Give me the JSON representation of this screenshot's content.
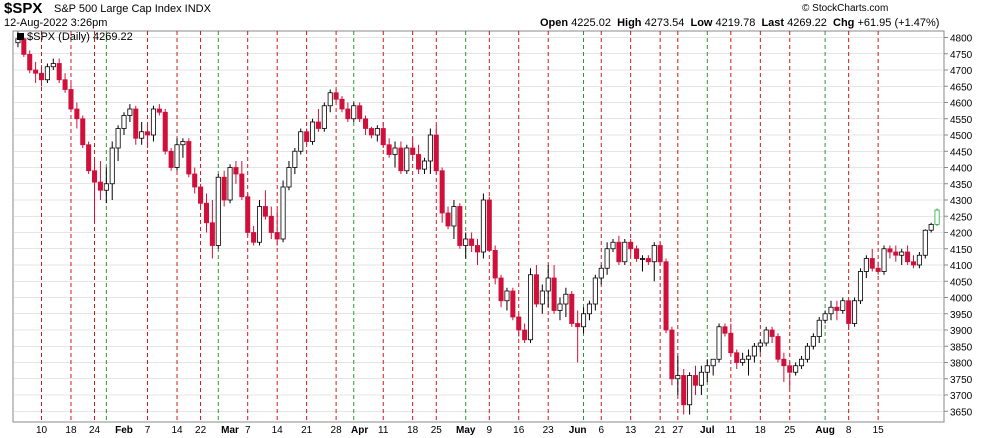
{
  "header": {
    "symbol": "$SPX",
    "description": "S&P 500 Large Cap Index  INDX",
    "copyright": "© StockCharts.com",
    "datetime": "12-Aug-2022 3:26pm",
    "open_label": "Open",
    "open": "4225.02",
    "high_label": "High",
    "high": "4273.54",
    "low_label": "Low",
    "low": "4219.78",
    "last_label": "Last",
    "last": "4269.22",
    "chg_label": "Chg",
    "chg": "+61.95 (+1.47%)"
  },
  "legend": "$SPX (Daily) 4269.22",
  "colors": {
    "up": "#000000",
    "down": "#d0103a",
    "last_up": "#22a83a",
    "grid": "#cccccc",
    "week_line": "#cc0000",
    "month_line": "#1a8a1a"
  },
  "chart_data": {
    "type": "candlestick",
    "title": "$SPX (Daily) 4269.22",
    "ylim": [
      3620,
      4820
    ],
    "yticks": [
      3650,
      3700,
      3750,
      3800,
      3850,
      3900,
      3950,
      4000,
      4050,
      4100,
      4150,
      4200,
      4250,
      4300,
      4350,
      4400,
      4450,
      4500,
      4550,
      4600,
      4650,
      4700,
      4750,
      4800
    ],
    "x_tick_labels": [
      {
        "label": "10",
        "i": 4
      },
      {
        "label": "18",
        "i": 9
      },
      {
        "label": "24",
        "i": 13
      },
      {
        "label": "Feb",
        "i": 18,
        "bold": true
      },
      {
        "label": "7",
        "i": 22
      },
      {
        "label": "14",
        "i": 27
      },
      {
        "label": "22",
        "i": 31
      },
      {
        "label": "Mar",
        "i": 36,
        "bold": true
      },
      {
        "label": "7",
        "i": 39
      },
      {
        "label": "14",
        "i": 44
      },
      {
        "label": "21",
        "i": 49
      },
      {
        "label": "28",
        "i": 54
      },
      {
        "label": "Apr",
        "i": 58,
        "bold": true
      },
      {
        "label": "11",
        "i": 62
      },
      {
        "label": "18",
        "i": 67
      },
      {
        "label": "25",
        "i": 71
      },
      {
        "label": "May",
        "i": 76,
        "bold": true
      },
      {
        "label": "9",
        "i": 80
      },
      {
        "label": "16",
        "i": 85
      },
      {
        "label": "23",
        "i": 90
      },
      {
        "label": "Jun",
        "i": 95,
        "bold": true
      },
      {
        "label": "6",
        "i": 99
      },
      {
        "label": "13",
        "i": 104
      },
      {
        "label": "21",
        "i": 109
      },
      {
        "label": "27",
        "i": 112
      },
      {
        "label": "Jul",
        "i": 117,
        "bold": true
      },
      {
        "label": "11",
        "i": 121
      },
      {
        "label": "18",
        "i": 126
      },
      {
        "label": "25",
        "i": 131
      },
      {
        "label": "Aug",
        "i": 137,
        "bold": true
      },
      {
        "label": "8",
        "i": 141
      },
      {
        "label": "15",
        "i": 146
      }
    ],
    "week_line_idx": [
      4,
      9,
      13,
      22,
      27,
      31,
      39,
      44,
      49,
      54,
      62,
      67,
      71,
      80,
      85,
      90,
      99,
      104,
      109,
      112,
      121,
      126,
      131,
      141,
      146
    ],
    "month_line_idx": [
      15,
      34,
      57,
      76,
      96,
      117,
      137
    ],
    "candles": [
      [
        4784,
        4818,
        4770,
        4796
      ],
      [
        4796,
        4800,
        4740,
        4748
      ],
      [
        4748,
        4760,
        4690,
        4700
      ],
      [
        4700,
        4725,
        4660,
        4690
      ],
      [
        4690,
        4715,
        4650,
        4670
      ],
      [
        4670,
        4720,
        4660,
        4710
      ],
      [
        4710,
        4735,
        4700,
        4720
      ],
      [
        4720,
        4735,
        4660,
        4670
      ],
      [
        4670,
        4690,
        4630,
        4640
      ],
      [
        4640,
        4660,
        4570,
        4580
      ],
      [
        4580,
        4600,
        4520,
        4550
      ],
      [
        4550,
        4560,
        4460,
        4470
      ],
      [
        4470,
        4480,
        4380,
        4390
      ],
      [
        4390,
        4420,
        4230,
        4355
      ],
      [
        4355,
        4420,
        4300,
        4330
      ],
      [
        4330,
        4400,
        4290,
        4350
      ],
      [
        4350,
        4480,
        4300,
        4460
      ],
      [
        4460,
        4530,
        4420,
        4520
      ],
      [
        4520,
        4570,
        4500,
        4560
      ],
      [
        4560,
        4595,
        4540,
        4580
      ],
      [
        4580,
        4590,
        4470,
        4490
      ],
      [
        4490,
        4540,
        4470,
        4510
      ],
      [
        4510,
        4530,
        4460,
        4500
      ],
      [
        4500,
        4590,
        4480,
        4580
      ],
      [
        4580,
        4595,
        4560,
        4570
      ],
      [
        4570,
        4580,
        4440,
        4450
      ],
      [
        4450,
        4460,
        4390,
        4400
      ],
      [
        4400,
        4490,
        4390,
        4470
      ],
      [
        4470,
        4490,
        4430,
        4480
      ],
      [
        4480,
        4490,
        4370,
        4380
      ],
      [
        4380,
        4400,
        4320,
        4340
      ],
      [
        4340,
        4350,
        4280,
        4290
      ],
      [
        4290,
        4320,
        4200,
        4230
      ],
      [
        4230,
        4300,
        4120,
        4160
      ],
      [
        4160,
        4380,
        4150,
        4370
      ],
      [
        4370,
        4390,
        4280,
        4300
      ],
      [
        4300,
        4410,
        4290,
        4400
      ],
      [
        4400,
        4420,
        4350,
        4380
      ],
      [
        4380,
        4420,
        4300,
        4310
      ],
      [
        4310,
        4320,
        4190,
        4200
      ],
      [
        4200,
        4220,
        4160,
        4170
      ],
      [
        4170,
        4300,
        4160,
        4280
      ],
      [
        4280,
        4330,
        4240,
        4250
      ],
      [
        4250,
        4280,
        4180,
        4200
      ],
      [
        4200,
        4270,
        4160,
        4180
      ],
      [
        4180,
        4360,
        4170,
        4340
      ],
      [
        4340,
        4420,
        4330,
        4400
      ],
      [
        4400,
        4460,
        4380,
        4450
      ],
      [
        4450,
        4520,
        4440,
        4510
      ],
      [
        4510,
        4520,
        4470,
        4480
      ],
      [
        4480,
        4550,
        4470,
        4540
      ],
      [
        4540,
        4580,
        4510,
        4520
      ],
      [
        4520,
        4600,
        4510,
        4590
      ],
      [
        4590,
        4640,
        4570,
        4630
      ],
      [
        4630,
        4640,
        4600,
        4610
      ],
      [
        4610,
        4620,
        4570,
        4580
      ],
      [
        4580,
        4600,
        4540,
        4550
      ],
      [
        4550,
        4600,
        4540,
        4590
      ],
      [
        4590,
        4600,
        4540,
        4550
      ],
      [
        4550,
        4560,
        4500,
        4520
      ],
      [
        4520,
        4525,
        4490,
        4500
      ],
      [
        4500,
        4530,
        4480,
        4520
      ],
      [
        4520,
        4540,
        4460,
        4470
      ],
      [
        4470,
        4490,
        4430,
        4440
      ],
      [
        4440,
        4480,
        4400,
        4460
      ],
      [
        4460,
        4480,
        4380,
        4390
      ],
      [
        4390,
        4470,
        4380,
        4460
      ],
      [
        4460,
        4490,
        4430,
        4440
      ],
      [
        4440,
        4470,
        4380,
        4395
      ],
      [
        4395,
        4430,
        4380,
        4420
      ],
      [
        4420,
        4520,
        4380,
        4500
      ],
      [
        4500,
        4530,
        4380,
        4390
      ],
      [
        4390,
        4400,
        4230,
        4260
      ],
      [
        4260,
        4280,
        4210,
        4220
      ],
      [
        4220,
        4300,
        4180,
        4280
      ],
      [
        4280,
        4290,
        4150,
        4160
      ],
      [
        4160,
        4200,
        4120,
        4180
      ],
      [
        4180,
        4200,
        4140,
        4160
      ],
      [
        4160,
        4180,
        4100,
        4140
      ],
      [
        4140,
        4320,
        4120,
        4300
      ],
      [
        4300,
        4310,
        4140,
        4145
      ],
      [
        4145,
        4160,
        4040,
        4060
      ],
      [
        4060,
        4070,
        3970,
        3990
      ],
      [
        3990,
        4030,
        3960,
        4020
      ],
      [
        4020,
        4030,
        3930,
        3940
      ],
      [
        3940,
        3950,
        3880,
        3900
      ],
      [
        3900,
        3920,
        3860,
        3870
      ],
      [
        3870,
        4090,
        3860,
        4070
      ],
      [
        4070,
        4100,
        3970,
        3980
      ],
      [
        3980,
        4040,
        3950,
        4020
      ],
      [
        4020,
        4100,
        3970,
        4060
      ],
      [
        4060,
        4100,
        3950,
        3960
      ],
      [
        3960,
        4000,
        3930,
        3980
      ],
      [
        3980,
        4030,
        3940,
        4010
      ],
      [
        4010,
        4020,
        3910,
        3920
      ],
      [
        3920,
        3960,
        3800,
        3910
      ],
      [
        3910,
        3970,
        3890,
        3950
      ],
      [
        3950,
        3990,
        3930,
        3980
      ],
      [
        3980,
        4070,
        3960,
        4060
      ],
      [
        4060,
        4100,
        4040,
        4090
      ],
      [
        4090,
        4170,
        4070,
        4150
      ],
      [
        4150,
        4180,
        4140,
        4170
      ],
      [
        4170,
        4190,
        4100,
        4110
      ],
      [
        4110,
        4180,
        4100,
        4170
      ],
      [
        4170,
        4180,
        4130,
        4150
      ],
      [
        4150,
        4160,
        4110,
        4120
      ],
      [
        4120,
        4130,
        4080,
        4120
      ],
      [
        4120,
        4130,
        4100,
        4110
      ],
      [
        4110,
        4170,
        4050,
        4160
      ],
      [
        4160,
        4170,
        4100,
        4110
      ],
      [
        4110,
        4120,
        3890,
        3900
      ],
      [
        3900,
        3910,
        3730,
        3750
      ],
      [
        3750,
        3820,
        3700,
        3760
      ],
      [
        3760,
        3780,
        3640,
        3670
      ],
      [
        3670,
        3770,
        3640,
        3760
      ],
      [
        3760,
        3790,
        3700,
        3730
      ],
      [
        3730,
        3790,
        3700,
        3770
      ],
      [
        3770,
        3810,
        3740,
        3790
      ],
      [
        3790,
        3810,
        3760,
        3810
      ],
      [
        3810,
        3920,
        3800,
        3910
      ],
      [
        3910,
        3920,
        3880,
        3890
      ],
      [
        3890,
        3920,
        3820,
        3830
      ],
      [
        3830,
        3840,
        3780,
        3800
      ],
      [
        3800,
        3830,
        3790,
        3810
      ],
      [
        3810,
        3840,
        3760,
        3820
      ],
      [
        3820,
        3860,
        3800,
        3850
      ],
      [
        3850,
        3870,
        3830,
        3860
      ],
      [
        3860,
        3910,
        3850,
        3900
      ],
      [
        3900,
        3910,
        3860,
        3880
      ],
      [
        3880,
        3890,
        3800,
        3810
      ],
      [
        3810,
        3830,
        3740,
        3790
      ],
      [
        3790,
        3800,
        3720,
        3770
      ],
      [
        3770,
        3800,
        3760,
        3790
      ],
      [
        3790,
        3820,
        3780,
        3810
      ],
      [
        3810,
        3860,
        3800,
        3850
      ],
      [
        3850,
        3890,
        3840,
        3880
      ],
      [
        3880,
        3940,
        3860,
        3930
      ],
      [
        3930,
        3960,
        3920,
        3950
      ],
      [
        3950,
        3990,
        3930,
        3970
      ],
      [
        3970,
        3990,
        3930,
        3960
      ],
      [
        3960,
        4000,
        3950,
        3990
      ],
      [
        3990,
        3990,
        3900,
        3920
      ],
      [
        3920,
        4000,
        3910,
        3990
      ],
      [
        3990,
        4090,
        3980,
        4080
      ],
      [
        4080,
        4130,
        4060,
        4120
      ],
      [
        4120,
        4150,
        4080,
        4090
      ],
      [
        4090,
        4110,
        4070,
        4080
      ],
      [
        4080,
        4160,
        4070,
        4150
      ],
      [
        4150,
        4160,
        4120,
        4140
      ],
      [
        4140,
        4160,
        4110,
        4130
      ],
      [
        4130,
        4150,
        4100,
        4140
      ],
      [
        4140,
        4160,
        4100,
        4110
      ],
      [
        4110,
        4130,
        4090,
        4100
      ],
      [
        4100,
        4140,
        4090,
        4130
      ],
      [
        4130,
        4210,
        4120,
        4207
      ],
      [
        4207,
        4230,
        4200,
        4225
      ],
      [
        4225,
        4274,
        4220,
        4269
      ]
    ]
  }
}
